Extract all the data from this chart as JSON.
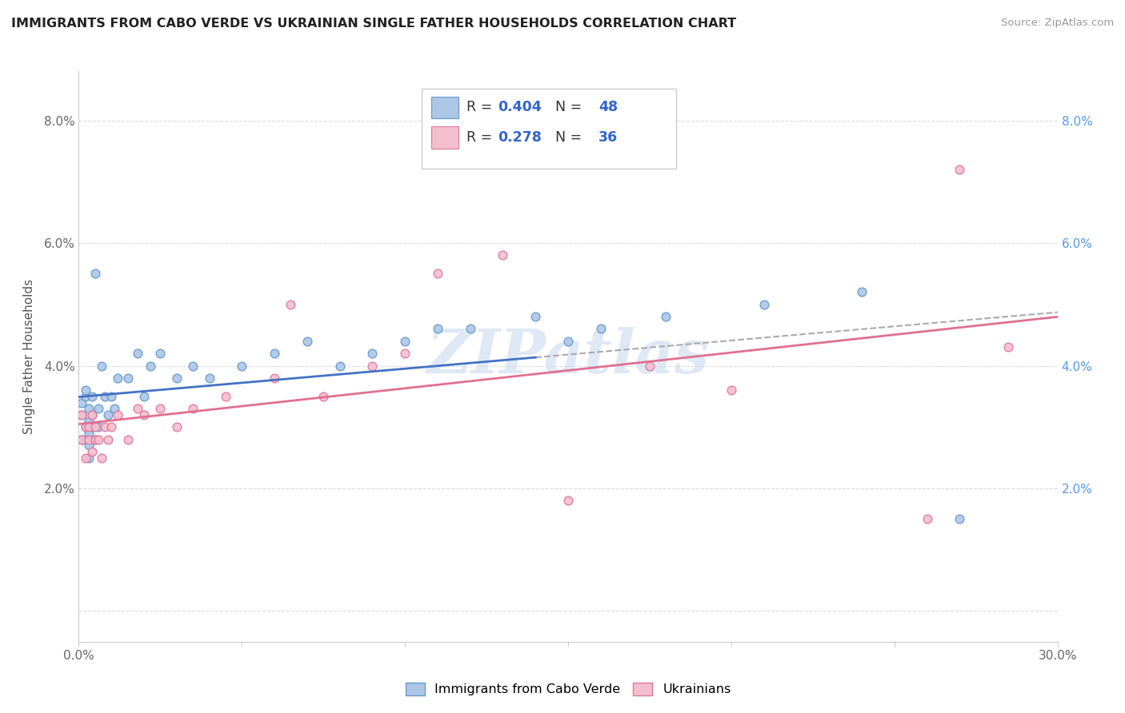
{
  "title": "IMMIGRANTS FROM CABO VERDE VS UKRAINIAN SINGLE FATHER HOUSEHOLDS CORRELATION CHART",
  "source": "Source: ZipAtlas.com",
  "ylabel": "Single Father Households",
  "xlim": [
    0.0,
    0.3
  ],
  "ylim": [
    -0.005,
    0.088
  ],
  "xticks": [
    0.0,
    0.05,
    0.1,
    0.15,
    0.2,
    0.25,
    0.3
  ],
  "xticklabels": [
    "0.0%",
    "",
    "",
    "",
    "",
    "",
    "30.0%"
  ],
  "yticks": [
    0.0,
    0.02,
    0.04,
    0.06,
    0.08
  ],
  "yticklabels_left": [
    "",
    "2.0%",
    "4.0%",
    "6.0%",
    "8.0%"
  ],
  "yticklabels_right": [
    "",
    "2.0%",
    "4.0%",
    "6.0%",
    "8.0%"
  ],
  "legend1_R": "0.404",
  "legend1_N": "48",
  "legend2_R": "0.278",
  "legend2_N": "36",
  "legend1_color": "#adc6e8",
  "legend2_color": "#f5bece",
  "line1_color": "#4472c4",
  "line2_color": "#e07090",
  "dashed_color": "#aaaaaa",
  "watermark": "ZIPatlas",
  "cabo_verde_x": [
    0.001,
    0.001,
    0.001,
    0.002,
    0.002,
    0.002,
    0.002,
    0.003,
    0.003,
    0.003,
    0.003,
    0.003,
    0.004,
    0.004,
    0.004,
    0.005,
    0.005,
    0.006,
    0.006,
    0.007,
    0.008,
    0.009,
    0.01,
    0.011,
    0.012,
    0.015,
    0.018,
    0.02,
    0.022,
    0.025,
    0.03,
    0.035,
    0.04,
    0.05,
    0.06,
    0.07,
    0.08,
    0.09,
    0.1,
    0.11,
    0.12,
    0.14,
    0.15,
    0.16,
    0.18,
    0.21,
    0.24,
    0.27
  ],
  "cabo_verde_y": [
    0.028,
    0.032,
    0.034,
    0.03,
    0.028,
    0.035,
    0.036,
    0.031,
    0.033,
    0.029,
    0.025,
    0.027,
    0.03,
    0.032,
    0.035,
    0.028,
    0.055,
    0.03,
    0.033,
    0.04,
    0.035,
    0.032,
    0.035,
    0.033,
    0.038,
    0.038,
    0.042,
    0.035,
    0.04,
    0.042,
    0.038,
    0.04,
    0.038,
    0.04,
    0.042,
    0.044,
    0.04,
    0.042,
    0.044,
    0.046,
    0.046,
    0.048,
    0.044,
    0.046,
    0.048,
    0.05,
    0.052,
    0.015
  ],
  "ukrainian_x": [
    0.001,
    0.001,
    0.002,
    0.002,
    0.003,
    0.003,
    0.004,
    0.004,
    0.005,
    0.005,
    0.006,
    0.007,
    0.008,
    0.009,
    0.01,
    0.012,
    0.015,
    0.018,
    0.02,
    0.025,
    0.03,
    0.035,
    0.045,
    0.06,
    0.065,
    0.075,
    0.09,
    0.1,
    0.11,
    0.13,
    0.15,
    0.175,
    0.2,
    0.26,
    0.27,
    0.285
  ],
  "ukrainian_y": [
    0.028,
    0.032,
    0.03,
    0.025,
    0.028,
    0.03,
    0.026,
    0.032,
    0.028,
    0.03,
    0.028,
    0.025,
    0.03,
    0.028,
    0.03,
    0.032,
    0.028,
    0.033,
    0.032,
    0.033,
    0.03,
    0.033,
    0.035,
    0.038,
    0.05,
    0.035,
    0.04,
    0.042,
    0.055,
    0.058,
    0.018,
    0.04,
    0.036,
    0.015,
    0.072,
    0.043
  ],
  "cabo_verde_scatter_color": "#adc6e8",
  "cabo_verde_scatter_edge": "#6699cc",
  "ukrainian_scatter_color": "#f5bece",
  "ukrainian_scatter_edge": "#dd7799",
  "marker_size": 60,
  "background_color": "#ffffff",
  "grid_color": "#dddddd",
  "right_tick_color": "#5599ee"
}
